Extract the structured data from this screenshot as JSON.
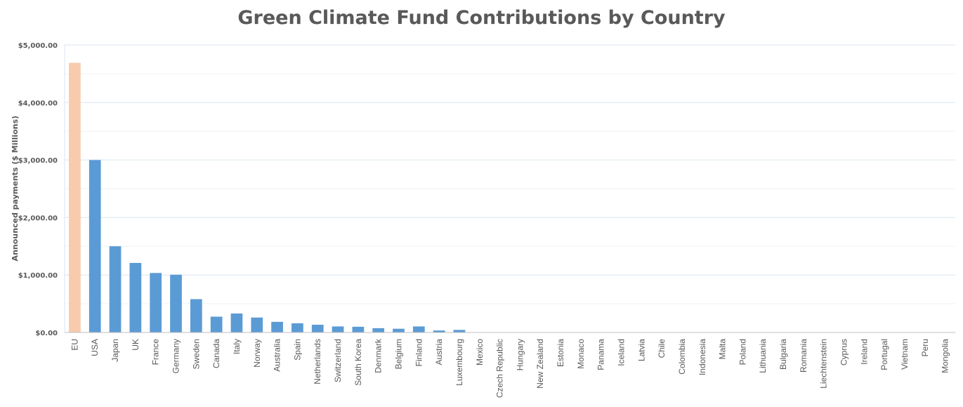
{
  "chart_data": {
    "type": "bar",
    "title": "Green Climate Fund Contributions by Country",
    "xlabel": "",
    "ylabel": "Announced payments ($ Millions)",
    "ylim": [
      0,
      5000
    ],
    "y_ticks": [
      "$0.00",
      "$1,000.00",
      "$2,000.00",
      "$3,000.00",
      "$4,000.00",
      "$5,000.00"
    ],
    "y_tick_values": [
      0,
      1000,
      2000,
      3000,
      4000,
      5000
    ],
    "grid": true,
    "colors": {
      "highlight": "#F8CBAD",
      "default": "#5B9BD5",
      "grid": "#D9E6EF",
      "axis": "#BFBFBF"
    },
    "highlight_categories": [
      "EU"
    ],
    "categories": [
      "EU",
      "USA",
      "Japan",
      "UK",
      "France",
      "Germany",
      "Sweden",
      "Canada",
      "Italy",
      "Norway",
      "Australia",
      "Spain",
      "Netherlands",
      "Switzerland",
      "South Korea",
      "Denmark",
      "Belgium",
      "Finland",
      "Austria",
      "Luxembourg",
      "Mexico",
      "Czech Republic",
      "Hungary",
      "New Zealand",
      "Estonia",
      "Monaco",
      "Panama",
      "Iceland",
      "Latvia",
      "Chile",
      "Colombia",
      "Indonesia",
      "Malta",
      "Poland",
      "Lithuania",
      "Bulgaria",
      "Romania",
      "Liechtenstein",
      "Cyprus",
      "Ireland",
      "Portugal",
      "Vietnam",
      "Peru",
      "Mongolia"
    ],
    "values": [
      4690,
      3000,
      1500,
      1210,
      1035,
      1005,
      580,
      275,
      330,
      260,
      185,
      160,
      135,
      105,
      100,
      75,
      65,
      105,
      35,
      45,
      0,
      0,
      0,
      0,
      0,
      0,
      0,
      0,
      0,
      0,
      0,
      0,
      0,
      0,
      0,
      0,
      0,
      0,
      0,
      0,
      0,
      0,
      0,
      0
    ]
  }
}
